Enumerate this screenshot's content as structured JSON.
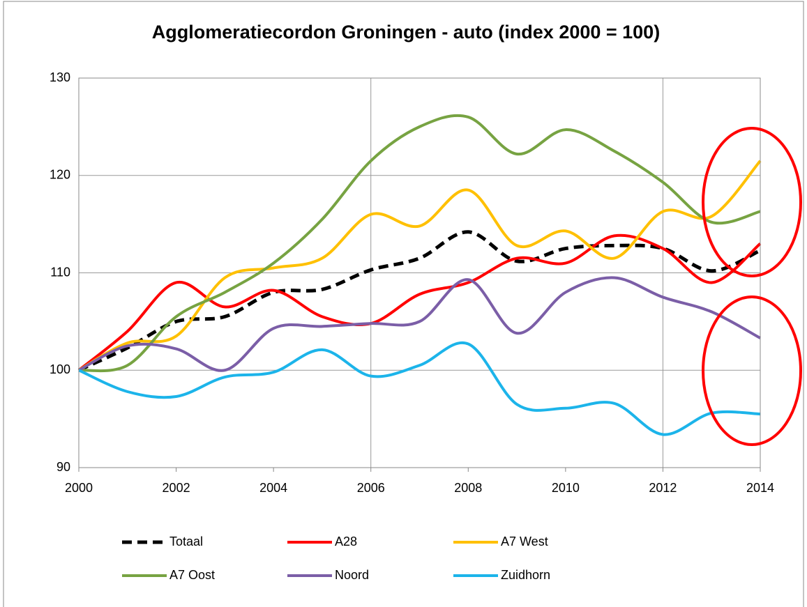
{
  "chart_data": {
    "type": "line",
    "title": "Agglomeratiecordon Groningen - auto (index 2000 = 100)",
    "x": [
      2000,
      2001,
      2002,
      2003,
      2004,
      2005,
      2006,
      2007,
      2008,
      2009,
      2010,
      2011,
      2012,
      2013,
      2014
    ],
    "xlim": [
      2000,
      2014
    ],
    "xticks": [
      2000,
      2002,
      2004,
      2006,
      2008,
      2010,
      2012,
      2014
    ],
    "xgrid": [
      2006,
      2012
    ],
    "ylim": [
      90,
      130
    ],
    "yticks": [
      90,
      100,
      110,
      120,
      130
    ],
    "grid": true,
    "legend": "bottom",
    "series": [
      {
        "name": "Totaal",
        "color": "#000000",
        "dashed": true,
        "values": [
          100,
          102.3,
          105,
          105.5,
          108,
          108.3,
          110.3,
          111.5,
          114.2,
          111.2,
          112.5,
          112.8,
          112.5,
          110.2,
          112.3
        ]
      },
      {
        "name": "A28",
        "color": "#ff0000",
        "values": [
          100,
          104,
          109,
          106.5,
          108.2,
          105.5,
          104.8,
          107.8,
          109,
          111.5,
          111,
          113.8,
          112.5,
          109,
          113
        ]
      },
      {
        "name": "A7 West",
        "color": "#ffc000",
        "values": [
          100,
          102.8,
          103.5,
          109.5,
          110.5,
          111.5,
          116,
          114.8,
          118.5,
          112.8,
          114.3,
          111.5,
          116.3,
          115.8,
          121.5
        ]
      },
      {
        "name": "A7 Oost",
        "color": "#77a342",
        "values": [
          100,
          100.5,
          105.5,
          108,
          111,
          115.5,
          121.5,
          125,
          126,
          122.2,
          124.7,
          122.5,
          119.3,
          115.2,
          116.3
        ]
      },
      {
        "name": "Noord",
        "color": "#7b5ea7",
        "values": [
          100,
          102.5,
          102.2,
          100,
          104.3,
          104.5,
          104.8,
          105,
          109.3,
          103.8,
          108,
          109.5,
          107.5,
          106,
          103.3
        ]
      },
      {
        "name": "Zuidhorn",
        "color": "#1cb4ea",
        "values": [
          100,
          97.8,
          97.3,
          99.3,
          99.8,
          102.1,
          99.4,
          100.5,
          102.7,
          96.5,
          96.1,
          96.6,
          93.4,
          95.6,
          95.5
        ]
      }
    ]
  }
}
